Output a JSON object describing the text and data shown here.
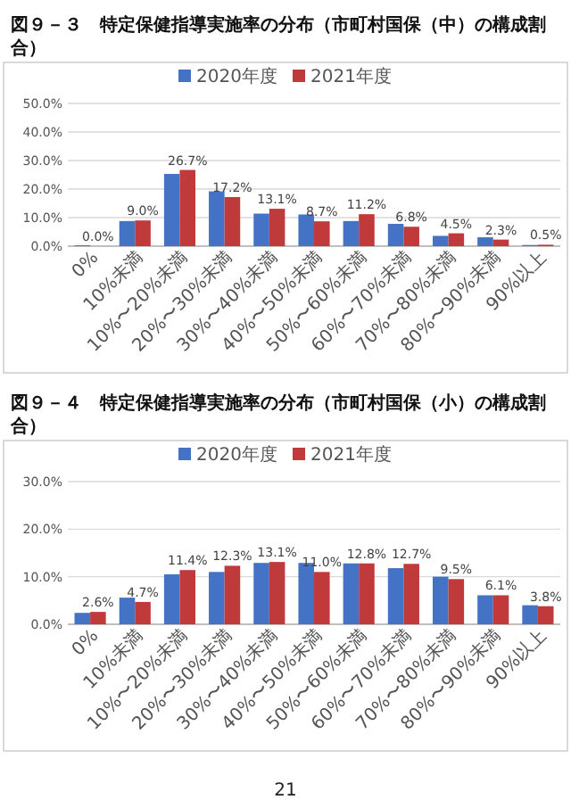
{
  "chart_data": [
    {
      "type": "bar",
      "title": "図９－３　特定保健指導実施率の分布（市町村国保（中）の構成割合）",
      "categories": [
        "0%",
        "10%未満",
        "10%〜20%未満",
        "20%〜30%未満",
        "30%〜40%未満",
        "40%〜50%未満",
        "50%〜60%未満",
        "60%〜70%未満",
        "70%〜80%未満",
        "80%〜90%未満",
        "90%以上"
      ],
      "series": [
        {
          "name": "2020年度",
          "color": "#4472c4",
          "values": [
            0.3,
            8.8,
            25.3,
            19.2,
            11.4,
            11.1,
            8.8,
            7.8,
            3.6,
            3.1,
            0.4
          ]
        },
        {
          "name": "2021年度",
          "color": "#c0393b",
          "values": [
            0.0,
            9.0,
            26.7,
            17.2,
            13.1,
            8.7,
            11.2,
            6.8,
            4.5,
            2.3,
            0.5
          ],
          "value_labels": [
            "0.0%",
            "9.0%",
            "26.7%",
            "17.2%",
            "13.1%",
            "8.7%",
            "11.2%",
            "6.8%",
            "4.5%",
            "2.3%",
            "0.5%"
          ]
        }
      ],
      "ylim": [
        0,
        50
      ],
      "yticks": [
        {
          "value": 0,
          "label": "0.0%"
        },
        {
          "value": 10,
          "label": "10.0%"
        },
        {
          "value": 20,
          "label": "20.0%"
        },
        {
          "value": 30,
          "label": "30.0%"
        },
        {
          "value": 40,
          "label": "40.0%"
        },
        {
          "value": 50,
          "label": "50.0%"
        }
      ],
      "grid": "y",
      "legend": "top"
    },
    {
      "type": "bar",
      "title": "図９－４　特定保健指導実施率の分布（市町村国保（小）の構成割合）",
      "categories": [
        "0%",
        "10%未満",
        "10%〜20%未満",
        "20%〜30%未満",
        "30%〜40%未満",
        "40%〜50%未満",
        "50%〜60%未満",
        "60%〜70%未満",
        "70%〜80%未満",
        "80%〜90%未満",
        "90%以上"
      ],
      "series": [
        {
          "name": "2020年度",
          "color": "#4472c4",
          "values": [
            2.4,
            5.6,
            10.5,
            11.0,
            12.9,
            12.9,
            12.8,
            11.8,
            10.0,
            6.1,
            4.0
          ]
        },
        {
          "name": "2021年度",
          "color": "#c0393b",
          "values": [
            2.6,
            4.7,
            11.4,
            12.3,
            13.1,
            11.0,
            12.8,
            12.7,
            9.5,
            6.1,
            3.8
          ],
          "value_labels": [
            "2.6%",
            "4.7%",
            "11.4%",
            "12.3%",
            "13.1%",
            "11.0%",
            "12.8%",
            "12.7%",
            "9.5%",
            "6.1%",
            "3.8%"
          ]
        }
      ],
      "ylim": [
        0,
        30
      ],
      "yticks": [
        {
          "value": 0,
          "label": "0.0%"
        },
        {
          "value": 10,
          "label": "10.0%"
        },
        {
          "value": 20,
          "label": "20.0%"
        },
        {
          "value": 30,
          "label": "30.0%"
        }
      ],
      "grid": "y",
      "legend": "top",
      "annotations": [
        "21"
      ]
    }
  ]
}
